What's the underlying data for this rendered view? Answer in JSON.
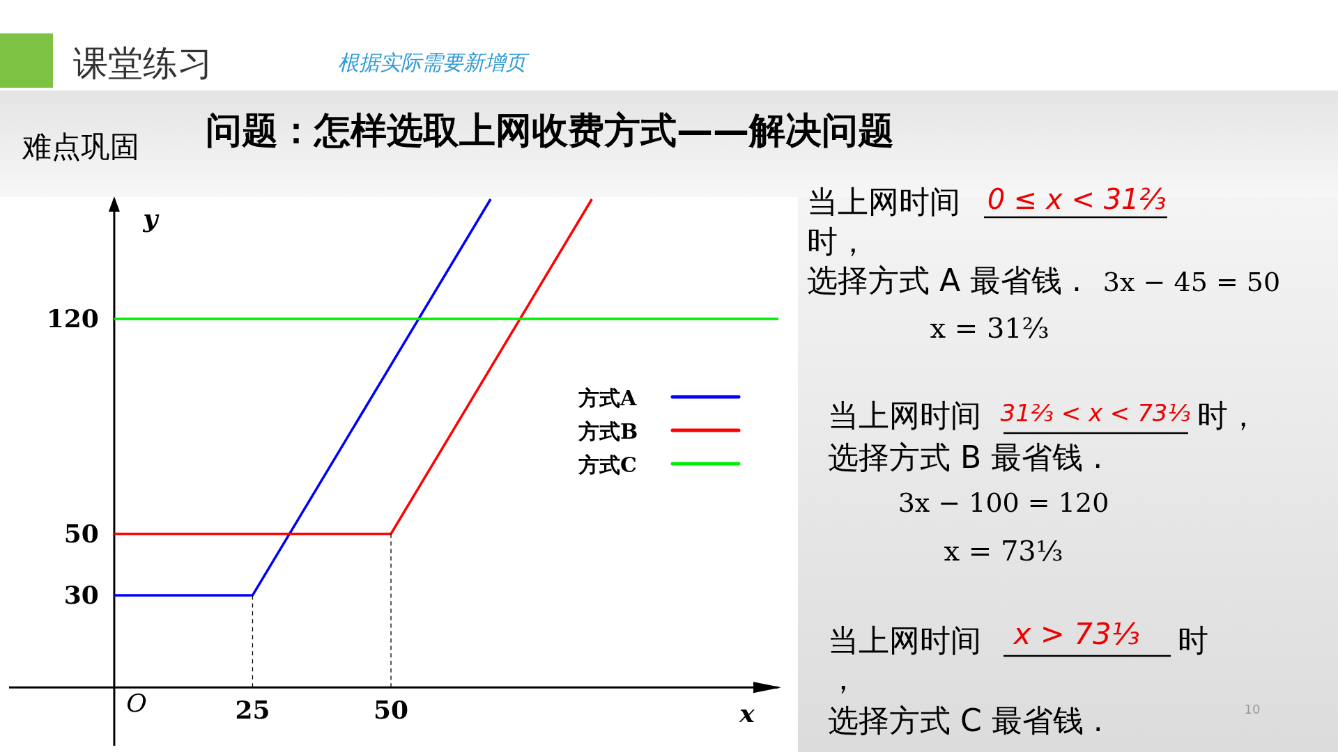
{
  "chart_data": {
    "type": "line",
    "title": "问题：怎样选取上网收费方式——解决问题",
    "xlabel": "x",
    "ylabel": "y",
    "xlim": [
      -19,
      120
    ],
    "ylim": [
      -19,
      159
    ],
    "xticks": [
      25,
      50
    ],
    "yticks": [
      30,
      50,
      120
    ],
    "legend": "right",
    "marker": "none",
    "line_style": "solid",
    "grid": false,
    "series": [
      {
        "name": "方式A",
        "color": "#0000ff",
        "x": [
          0,
          25,
          68
        ],
        "values": [
          30,
          30,
          159
        ]
      },
      {
        "name": "方式B",
        "color": "#ff0000",
        "x": [
          0,
          50,
          86.3
        ],
        "values": [
          50,
          50,
          159
        ]
      },
      {
        "name": "方式C",
        "color": "#00ee00",
        "x": [
          0,
          120
        ],
        "values": [
          120,
          120
        ]
      },
      {
        "color": "#000000",
        "line_style": "dashed",
        "x": [
          25,
          25
        ],
        "values": [
          0,
          30
        ]
      },
      {
        "color": "#000000",
        "line_style": "dashed",
        "x": [
          50,
          50
        ],
        "values": [
          0,
          50
        ]
      }
    ],
    "annotations": [
      "课堂练习",
      "根据实际需要新增页",
      "难点巩固",
      "当上网时间",
      "0 ≤ x < 31⅔",
      "时，",
      "选择方式 A 最省钱 .",
      "3x − 45 = 50",
      "x = 31⅔",
      "当上网时间",
      "31⅔ < x < 73⅓",
      "时，",
      "选择方式 B 最省钱 .",
      "3x − 100 = 120",
      "x = 73⅓",
      "当上网时间",
      "x > 73⅓",
      "时",
      "，",
      "选择方式 C 最省钱 .",
      "10",
      "O"
    ]
  }
}
